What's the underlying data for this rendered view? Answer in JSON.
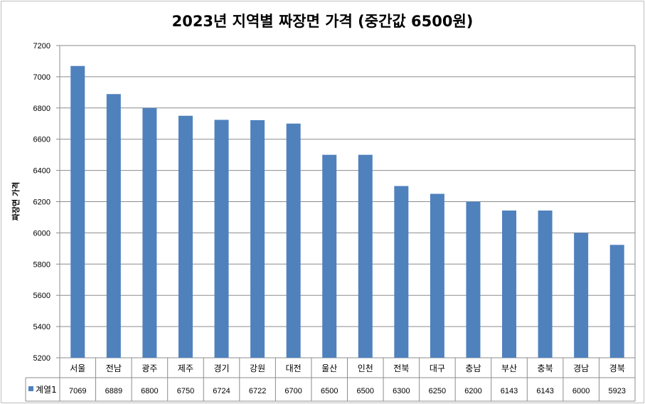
{
  "chart_data": {
    "type": "bar",
    "title": "2023년 지역별 짜장면 가격 (중간값 6500원)",
    "ylabel": "짜장면 가격",
    "xlabel": "",
    "ylim": [
      5200,
      7200
    ],
    "yticks": [
      5200,
      5400,
      5600,
      5800,
      6000,
      6200,
      6400,
      6600,
      6800,
      7000,
      7200
    ],
    "grid": true,
    "categories": [
      "서울",
      "전남",
      "광주",
      "제주",
      "경기",
      "강원",
      "대전",
      "울산",
      "인천",
      "전북",
      "대구",
      "충남",
      "부산",
      "충북",
      "경남",
      "경북"
    ],
    "series": [
      {
        "name": "계열1",
        "values": [
          7069,
          6889,
          6800,
          6750,
          6724,
          6722,
          6700,
          6500,
          6500,
          6300,
          6250,
          6200,
          6143,
          6143,
          6000,
          5923
        ]
      }
    ],
    "data_table": true,
    "colors": {
      "bar": "#4f81bd",
      "grid": "#8c8c8c"
    }
  }
}
